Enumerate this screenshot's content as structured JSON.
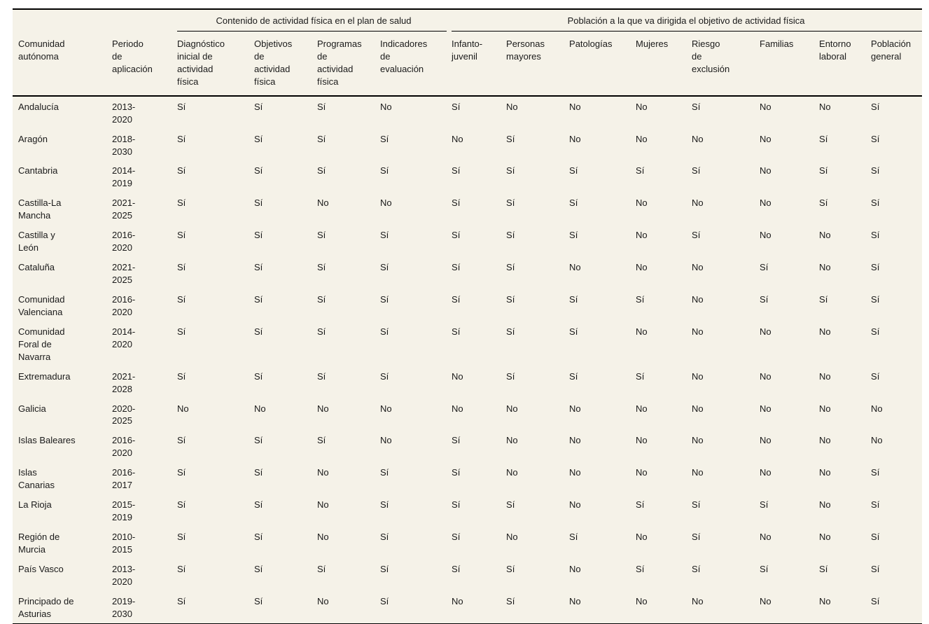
{
  "colors": {
    "page_bg": "#ffffff",
    "table_bg": "#f5f2e8",
    "rule": "#000000",
    "text": "#1a1a1a"
  },
  "table": {
    "stub_headers": [
      "Comunidad autónoma",
      "Periodo de aplicación"
    ],
    "groups": [
      {
        "label": "Contenido de actividad física en el plan de salud",
        "columns": [
          "Diagnóstico inicial de actividad física",
          "Objetivos de actividad física",
          "Programas de actividad física",
          "Indicadores de evaluación"
        ]
      },
      {
        "label": "Población a la que va dirigida el objetivo de actividad física",
        "columns": [
          "Infanto-juvenil",
          "Personas mayores",
          "Patologías",
          "Mujeres",
          "Riesgo de exclusión",
          "Familias",
          "Entorno laboral",
          "Población general"
        ]
      }
    ],
    "rows": [
      {
        "comunidad": "Andalucía",
        "periodo": "2013-2020",
        "values": [
          "Sí",
          "Sí",
          "Sí",
          "No",
          "Sí",
          "No",
          "No",
          "No",
          "Sí",
          "No",
          "No",
          "Sí"
        ]
      },
      {
        "comunidad": "Aragón",
        "periodo": "2018-2030",
        "values": [
          "Sí",
          "Sí",
          "Sí",
          "Sí",
          "No",
          "Sí",
          "No",
          "No",
          "No",
          "No",
          "Sí",
          "Sí"
        ]
      },
      {
        "comunidad": "Cantabria",
        "periodo": "2014-2019",
        "values": [
          "Sí",
          "Sí",
          "Sí",
          "Sí",
          "Sí",
          "Sí",
          "Sí",
          "Sí",
          "Sí",
          "No",
          "Sí",
          "Sí"
        ]
      },
      {
        "comunidad": "Castilla-La Mancha",
        "periodo": "2021-2025",
        "values": [
          "Sí",
          "Sí",
          "No",
          "No",
          "Sí",
          "Sí",
          "Sí",
          "No",
          "No",
          "No",
          "Sí",
          "Sí"
        ]
      },
      {
        "comunidad": "Castilla y León",
        "periodo": "2016-2020",
        "values": [
          "Sí",
          "Sí",
          "Sí",
          "Sí",
          "Sí",
          "Sí",
          "Sí",
          "No",
          "Sí",
          "No",
          "No",
          "Sí"
        ]
      },
      {
        "comunidad": "Cataluña",
        "periodo": "2021-2025",
        "values": [
          "Sí",
          "Sí",
          "Sí",
          "Sí",
          "Sí",
          "Sí",
          "No",
          "No",
          "No",
          "Sí",
          "No",
          "Sí"
        ]
      },
      {
        "comunidad": "Comunidad Valenciana",
        "periodo": "2016-2020",
        "values": [
          "Sí",
          "Sí",
          "Sí",
          "Sí",
          "Sí",
          "Sí",
          "Sí",
          "Sí",
          "No",
          "Sí",
          "Sí",
          "Sí"
        ]
      },
      {
        "comunidad": "Comunidad Foral de Navarra",
        "periodo": "2014-2020",
        "values": [
          "Sí",
          "Sí",
          "Sí",
          "Sí",
          "Sí",
          "Sí",
          "Sí",
          "No",
          "No",
          "No",
          "No",
          "Sí"
        ]
      },
      {
        "comunidad": "Extremadura",
        "periodo": "2021-2028",
        "values": [
          "Sí",
          "Sí",
          "Sí",
          "Sí",
          "No",
          "Sí",
          "Sí",
          "Sí",
          "No",
          "No",
          "No",
          "Sí"
        ]
      },
      {
        "comunidad": "Galicia",
        "periodo": "2020-2025",
        "values": [
          "No",
          "No",
          "No",
          "No",
          "No",
          "No",
          "No",
          "No",
          "No",
          "No",
          "No",
          "No"
        ]
      },
      {
        "comunidad": "Islas Baleares",
        "periodo": "2016-2020",
        "values": [
          "Sí",
          "Sí",
          "Sí",
          "No",
          "Sí",
          "No",
          "No",
          "No",
          "No",
          "No",
          "No",
          "No"
        ]
      },
      {
        "comunidad": "Islas Canarias",
        "periodo": "2016-2017",
        "values": [
          "Sí",
          "Sí",
          "No",
          "Sí",
          "Sí",
          "No",
          "No",
          "No",
          "No",
          "No",
          "No",
          "Sí"
        ]
      },
      {
        "comunidad": "La Rioja",
        "periodo": "2015-2019",
        "values": [
          "Sí",
          "Sí",
          "No",
          "Sí",
          "Sí",
          "Sí",
          "No",
          "Sí",
          "Sí",
          "Sí",
          "No",
          "Sí"
        ]
      },
      {
        "comunidad": "Región de Murcia",
        "periodo": "2010-2015",
        "values": [
          "Sí",
          "Sí",
          "No",
          "Sí",
          "Sí",
          "No",
          "Sí",
          "No",
          "Sí",
          "No",
          "No",
          "Sí"
        ]
      },
      {
        "comunidad": "País Vasco",
        "periodo": "2013-2020",
        "values": [
          "Sí",
          "Sí",
          "Sí",
          "Sí",
          "Sí",
          "Sí",
          "No",
          "Sí",
          "Sí",
          "Sí",
          "Sí",
          "Sí"
        ]
      },
      {
        "comunidad": "Principado de Asturias",
        "periodo": "2019-2030",
        "values": [
          "Sí",
          "Sí",
          "No",
          "Sí",
          "No",
          "Sí",
          "No",
          "No",
          "No",
          "No",
          "No",
          "Sí"
        ]
      }
    ]
  }
}
